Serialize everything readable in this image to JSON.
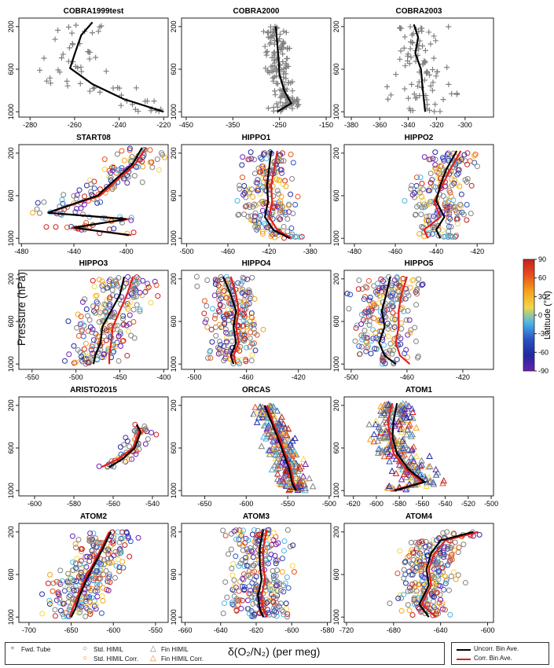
{
  "figure": {
    "y_axis_title": "Pressure (hPa)",
    "x_axis_title": "δ(O₂/N₂) (per meg)",
    "colorbar": {
      "title": "Latitude (°N)",
      "ticks": [
        "90",
        "60",
        "30",
        "0",
        "-30",
        "-60",
        "-90"
      ],
      "colors_top_to_bottom": [
        "#c81e1e",
        "#e8501c",
        "#f5a21a",
        "#f2d64a",
        "#49b6e6",
        "#2b53c7",
        "#1f2a9e",
        "#6a1fb5"
      ]
    }
  },
  "legend": {
    "fwd_tube": "Fwd. Tube",
    "std_himil": "Std. HIMIL",
    "std_himil_corr": "Std. HIMIL Corr.",
    "fin_himil": "Fin HIMIL",
    "fin_himil_corr": "Fin HIMIL Corr.",
    "uncorr_bin_ave": "Uncorr. Bin Ave.",
    "corr_bin_ave": "Corr. Bin Ave.",
    "colors": {
      "uncorr": "#000000",
      "corr": "#e0201b",
      "std": "#808080",
      "corr_marker": "#f07f1d"
    }
  },
  "chart_data": [
    {
      "title": "COBRA1999test",
      "type": "scatter",
      "marker": "plus",
      "ylabel": "Pressure (hPa)",
      "y_ticks": [
        200,
        600,
        1000
      ],
      "ylim": [
        1050,
        120
      ],
      "xlim": [
        -285,
        -218
      ],
      "x_ticks": [
        -280,
        -260,
        -240,
        -220
      ],
      "uncorr_bin": {
        "x": [
          -252,
          -257,
          -260,
          -262,
          -252,
          -238,
          -220
        ],
        "y": [
          160,
          280,
          460,
          590,
          740,
          880,
          1000
        ]
      },
      "cloud": {
        "center": -248,
        "spread": 16,
        "n": 60
      }
    },
    {
      "title": "COBRA2000",
      "type": "scatter",
      "marker": "plus",
      "ylabel": "",
      "y_ticks": [
        200,
        600,
        1000
      ],
      "ylim": [
        1050,
        120
      ],
      "xlim": [
        -460,
        -140
      ],
      "x_ticks": [
        -450,
        -350,
        -250,
        -150
      ],
      "uncorr_bin": {
        "x": [
          -258,
          -255,
          -252,
          -250,
          -240,
          -225,
          -255
        ],
        "y": [
          200,
          350,
          500,
          650,
          800,
          920,
          1000
        ]
      },
      "cloud": {
        "center": -245,
        "spread": 25,
        "n": 160
      }
    },
    {
      "title": "COBRA2003",
      "type": "scatter",
      "marker": "plus",
      "ylabel": "",
      "y_ticks": [
        200,
        600,
        1000
      ],
      "ylim": [
        1050,
        120
      ],
      "xlim": [
        -385,
        -280
      ],
      "x_ticks": [
        -380,
        -360,
        -340,
        -320,
        -300
      ],
      "uncorr_bin": {
        "x": [
          -336,
          -333,
          -335,
          -331,
          -330,
          -329,
          -328
        ],
        "y": [
          180,
          300,
          450,
          600,
          750,
          880,
          1000
        ]
      },
      "cloud": {
        "center": -333,
        "spread": 22,
        "n": 90
      }
    },
    {
      "title": "START08",
      "type": "scatter",
      "marker": "circle",
      "ylabel": "",
      "y_ticks": [
        200,
        600,
        1000
      ],
      "ylim": [
        1050,
        120
      ],
      "xlim": [
        -482,
        -368
      ],
      "x_ticks": [
        -480,
        -440,
        -400
      ],
      "uncorr_bin": {
        "x": [
          -388,
          -395,
          -422,
          -460,
          -400,
          -440,
          -398
        ],
        "y": [
          150,
          300,
          600,
          760,
          820,
          900,
          970
        ]
      },
      "corr_bin": {
        "x": [
          -385,
          -393,
          -420,
          -460,
          -398,
          -442,
          -396
        ],
        "y": [
          150,
          300,
          600,
          760,
          820,
          900,
          970
        ]
      },
      "cloud": {
        "center": -410,
        "spread": 22,
        "n": 150
      }
    },
    {
      "title": "HIPPO1",
      "type": "scatter",
      "marker": "circle",
      "ylabel": "",
      "y_ticks": [
        200,
        600,
        1000
      ],
      "ylim": [
        1050,
        120
      ],
      "xlim": [
        -505,
        -360
      ],
      "x_ticks": [
        -500,
        -460,
        -420,
        -380
      ],
      "uncorr_bin": {
        "x": [
          -418,
          -420,
          -422,
          -421,
          -424,
          -416,
          -400
        ],
        "y": [
          180,
          350,
          500,
          650,
          800,
          920,
          1000
        ]
      },
      "corr_bin": {
        "x": [
          -412,
          -415,
          -418,
          -417,
          -420,
          -412,
          -398
        ],
        "y": [
          180,
          350,
          500,
          650,
          800,
          920,
          1000
        ]
      },
      "cloud": {
        "center": -425,
        "spread": 25,
        "n": 220
      }
    },
    {
      "title": "HIPPO2",
      "type": "scatter",
      "marker": "circle",
      "ylabel": "",
      "y_ticks": [
        200,
        600,
        1000
      ],
      "ylim": [
        1050,
        120
      ],
      "xlim": [
        -485,
        -412
      ],
      "x_ticks": [
        -480,
        -460,
        -440,
        -420
      ],
      "uncorr_bin": {
        "x": [
          -430,
          -435,
          -438,
          -440,
          -436,
          -440,
          -438
        ],
        "y": [
          180,
          350,
          500,
          650,
          800,
          920,
          1000
        ]
      },
      "corr_bin": {
        "x": [
          -428,
          -433,
          -437,
          -441,
          -438,
          -446,
          -444
        ],
        "y": [
          180,
          350,
          500,
          650,
          800,
          920,
          1000
        ]
      },
      "cloud": {
        "center": -440,
        "spread": 13,
        "n": 220
      }
    },
    {
      "title": "HIPPO3",
      "type": "scatter",
      "marker": "circle",
      "ylabel": "",
      "y_ticks": [
        200,
        600,
        1000
      ],
      "ylim": [
        1050,
        120
      ],
      "xlim": [
        -565,
        -395
      ],
      "x_ticks": [
        -550,
        -500,
        -450,
        -400
      ],
      "uncorr_bin": {
        "x": [
          -445,
          -450,
          -460,
          -470,
          -472,
          -478,
          -480
        ],
        "y": [
          180,
          350,
          500,
          650,
          800,
          920,
          1000
        ]
      },
      "corr_bin": {
        "x": [
          -435,
          -442,
          -450,
          -458,
          -460,
          -462,
          -462
        ],
        "y": [
          180,
          350,
          500,
          650,
          800,
          920,
          1000
        ]
      },
      "cloud": {
        "center": -465,
        "spread": 38,
        "n": 230
      }
    },
    {
      "title": "HIPPO4",
      "type": "scatter",
      "marker": "circle",
      "ylabel": "",
      "y_ticks": [
        200,
        600,
        1000
      ],
      "ylim": [
        1050,
        120
      ],
      "xlim": [
        -510,
        -395
      ],
      "x_ticks": [
        -500,
        -460,
        -420
      ],
      "uncorr_bin": {
        "x": [
          -478,
          -472,
          -468,
          -470,
          -468,
          -472,
          -470
        ],
        "y": [
          180,
          350,
          500,
          650,
          800,
          920,
          1000
        ]
      },
      "corr_bin": {
        "x": [
          -472,
          -468,
          -466,
          -468,
          -466,
          -470,
          -468
        ],
        "y": [
          180,
          350,
          500,
          650,
          800,
          920,
          1000
        ]
      },
      "cloud": {
        "center": -468,
        "spread": 20,
        "n": 230
      }
    },
    {
      "title": "HIPPO5",
      "type": "scatter",
      "marker": "circle",
      "ylabel": "",
      "y_ticks": [
        200,
        600,
        1000
      ],
      "ylim": [
        1050,
        120
      ],
      "xlim": [
        -505,
        -398
      ],
      "x_ticks": [
        -500,
        -460,
        -420
      ],
      "uncorr_bin": {
        "x": [
          -472,
          -475,
          -478,
          -476,
          -480,
          -476,
          -468
        ],
        "y": [
          180,
          350,
          500,
          650,
          800,
          920,
          1000
        ]
      },
      "corr_bin": {
        "x": [
          -460,
          -464,
          -466,
          -466,
          -468,
          -465,
          -458
        ],
        "y": [
          180,
          350,
          500,
          650,
          800,
          920,
          1000
        ]
      },
      "cloud": {
        "center": -465,
        "spread": 22,
        "n": 230
      }
    },
    {
      "title": "ARISTO2015",
      "type": "scatter",
      "marker": "circle",
      "ylabel": "",
      "y_ticks": [
        200,
        600,
        1000
      ],
      "ylim": [
        1050,
        120
      ],
      "xlim": [
        -608,
        -532
      ],
      "x_ticks": [
        -600,
        -580,
        -560,
        -540
      ],
      "uncorr_bin": {
        "x": [
          -548,
          -546,
          -549,
          -555,
          -562
        ],
        "y": [
          380,
          450,
          600,
          700,
          780
        ]
      },
      "corr_bin": {
        "x": [
          -548,
          -547,
          -550,
          -557,
          -566
        ],
        "y": [
          380,
          450,
          600,
          700,
          780
        ]
      },
      "cloud": {
        "center": -554,
        "spread": 7,
        "n": 60
      }
    },
    {
      "title": "ORCAS",
      "type": "scatter",
      "marker": "triangle",
      "ylabel": "",
      "y_ticks": [
        200,
        600,
        1000
      ],
      "ylim": [
        1050,
        120
      ],
      "xlim": [
        -678,
        -498
      ],
      "x_ticks": [
        -650,
        -600,
        -550,
        -500
      ],
      "uncorr_bin": {
        "x": [
          -578,
          -570,
          -562,
          -555,
          -548,
          -545,
          -540
        ],
        "y": [
          200,
          350,
          500,
          650,
          800,
          920,
          1000
        ]
      },
      "corr_bin": {
        "x": [
          -575,
          -568,
          -560,
          -553,
          -546,
          -543,
          -538
        ],
        "y": [
          200,
          350,
          500,
          650,
          800,
          920,
          1000
        ]
      },
      "cloud": {
        "center": -555,
        "spread": 18,
        "n": 260
      }
    },
    {
      "title": "ATOM1",
      "type": "scatter",
      "marker": "triangle",
      "ylabel": "",
      "y_ticks": [
        200,
        600,
        1000
      ],
      "ylim": [
        1050,
        120
      ],
      "xlim": [
        -628,
        -498
      ],
      "x_ticks": [
        -620,
        -600,
        -580,
        -560,
        -540,
        -520,
        -500
      ],
      "uncorr_bin": {
        "x": [
          -582,
          -585,
          -586,
          -582,
          -572,
          -558,
          -584
        ],
        "y": [
          180,
          350,
          500,
          650,
          800,
          920,
          1000
        ]
      },
      "corr_bin": {
        "x": [
          -586,
          -590,
          -588,
          -585,
          -574,
          -560,
          -586
        ],
        "y": [
          180,
          350,
          500,
          650,
          800,
          920,
          1000
        ]
      },
      "cloud": {
        "center": -575,
        "spread": 20,
        "n": 260
      }
    },
    {
      "title": "ATOM2",
      "type": "scatter",
      "marker": "circle",
      "ylabel": "",
      "y_ticks": [
        200,
        600,
        1000
      ],
      "ylim": [
        1050,
        120
      ],
      "xlim": [
        -712,
        -535
      ],
      "x_ticks": [
        -700,
        -650,
        -600,
        -550
      ],
      "uncorr_bin": {
        "x": [
          -603,
          -612,
          -622,
          -632,
          -640,
          -645,
          -650
        ],
        "y": [
          200,
          350,
          500,
          650,
          800,
          920,
          1000
        ]
      },
      "corr_bin": {
        "x": [
          -605,
          -614,
          -624,
          -634,
          -642,
          -648,
          -652
        ],
        "y": [
          200,
          350,
          500,
          650,
          800,
          920,
          1000
        ]
      },
      "cloud": {
        "center": -620,
        "spread": 35,
        "n": 280
      }
    },
    {
      "title": "ATOM3",
      "type": "scatter",
      "marker": "circle",
      "ylabel": "",
      "y_ticks": [
        200,
        600,
        1000
      ],
      "ylim": [
        1050,
        120
      ],
      "xlim": [
        -662,
        -578
      ],
      "x_ticks": [
        -660,
        -640,
        -620,
        -600,
        -580
      ],
      "uncorr_bin": {
        "x": [
          -616,
          -618,
          -618,
          -617,
          -619,
          -618,
          -616
        ],
        "y": [
          180,
          350,
          500,
          650,
          800,
          920,
          1000
        ]
      },
      "corr_bin": {
        "x": [
          -614,
          -616,
          -616,
          -615,
          -617,
          -616,
          -614
        ],
        "y": [
          180,
          350,
          500,
          650,
          800,
          920,
          1000
        ]
      },
      "cloud": {
        "center": -612,
        "spread": 17,
        "n": 280
      }
    },
    {
      "title": "ATOM4",
      "type": "scatter",
      "marker": "circle",
      "ylabel": "",
      "y_ticks": [
        200,
        600,
        1000
      ],
      "ylim": [
        1050,
        120
      ],
      "xlim": [
        -722,
        -595
      ],
      "x_ticks": [
        -720,
        -680,
        -640,
        -600
      ],
      "uncorr_bin": {
        "x": [
          -612,
          -640,
          -648,
          -652,
          -650,
          -658,
          -650
        ],
        "y": [
          200,
          280,
          400,
          550,
          700,
          880,
          1000
        ]
      },
      "corr_bin": {
        "x": [
          -608,
          -636,
          -645,
          -650,
          -648,
          -656,
          -644
        ],
        "y": [
          200,
          280,
          400,
          550,
          700,
          880,
          1000
        ]
      },
      "cloud": {
        "center": -640,
        "spread": 25,
        "n": 280
      }
    }
  ]
}
